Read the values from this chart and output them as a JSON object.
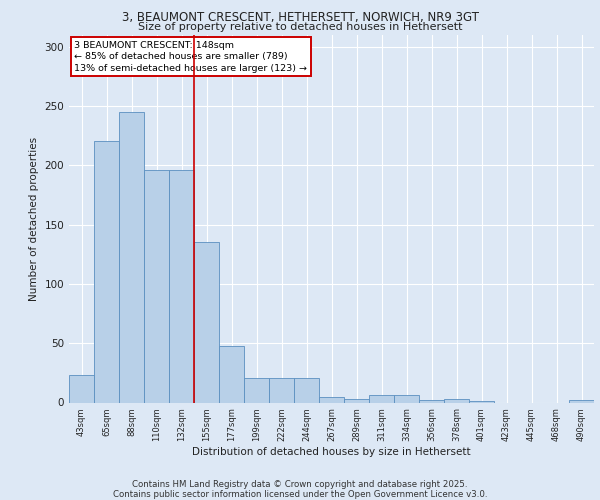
{
  "title_line1": "3, BEAUMONT CRESCENT, HETHERSETT, NORWICH, NR9 3GT",
  "title_line2": "Size of property relative to detached houses in Hethersett",
  "xlabel": "Distribution of detached houses by size in Hethersett",
  "ylabel": "Number of detached properties",
  "categories": [
    "43sqm",
    "65sqm",
    "88sqm",
    "110sqm",
    "132sqm",
    "155sqm",
    "177sqm",
    "199sqm",
    "222sqm",
    "244sqm",
    "267sqm",
    "289sqm",
    "311sqm",
    "334sqm",
    "356sqm",
    "378sqm",
    "401sqm",
    "423sqm",
    "445sqm",
    "468sqm",
    "490sqm"
  ],
  "values": [
    23,
    221,
    245,
    196,
    196,
    135,
    48,
    21,
    21,
    21,
    5,
    3,
    6,
    6,
    2,
    3,
    1,
    0,
    0,
    0,
    2
  ],
  "bar_color": "#b8d0e8",
  "bar_edge_color": "#5a8fc0",
  "annotation_text": "3 BEAUMONT CRESCENT: 148sqm\n← 85% of detached houses are smaller (789)\n13% of semi-detached houses are larger (123) →",
  "vline_x_index": 4.5,
  "vline_color": "#cc0000",
  "annotation_box_color": "#cc0000",
  "background_color": "#dde8f5",
  "fig_background_color": "#dde8f5",
  "grid_color": "#ffffff",
  "footer_text": "Contains HM Land Registry data © Crown copyright and database right 2025.\nContains public sector information licensed under the Open Government Licence v3.0.",
  "ylim": [
    0,
    310
  ],
  "yticks": [
    0,
    50,
    100,
    150,
    200,
    250,
    300
  ]
}
